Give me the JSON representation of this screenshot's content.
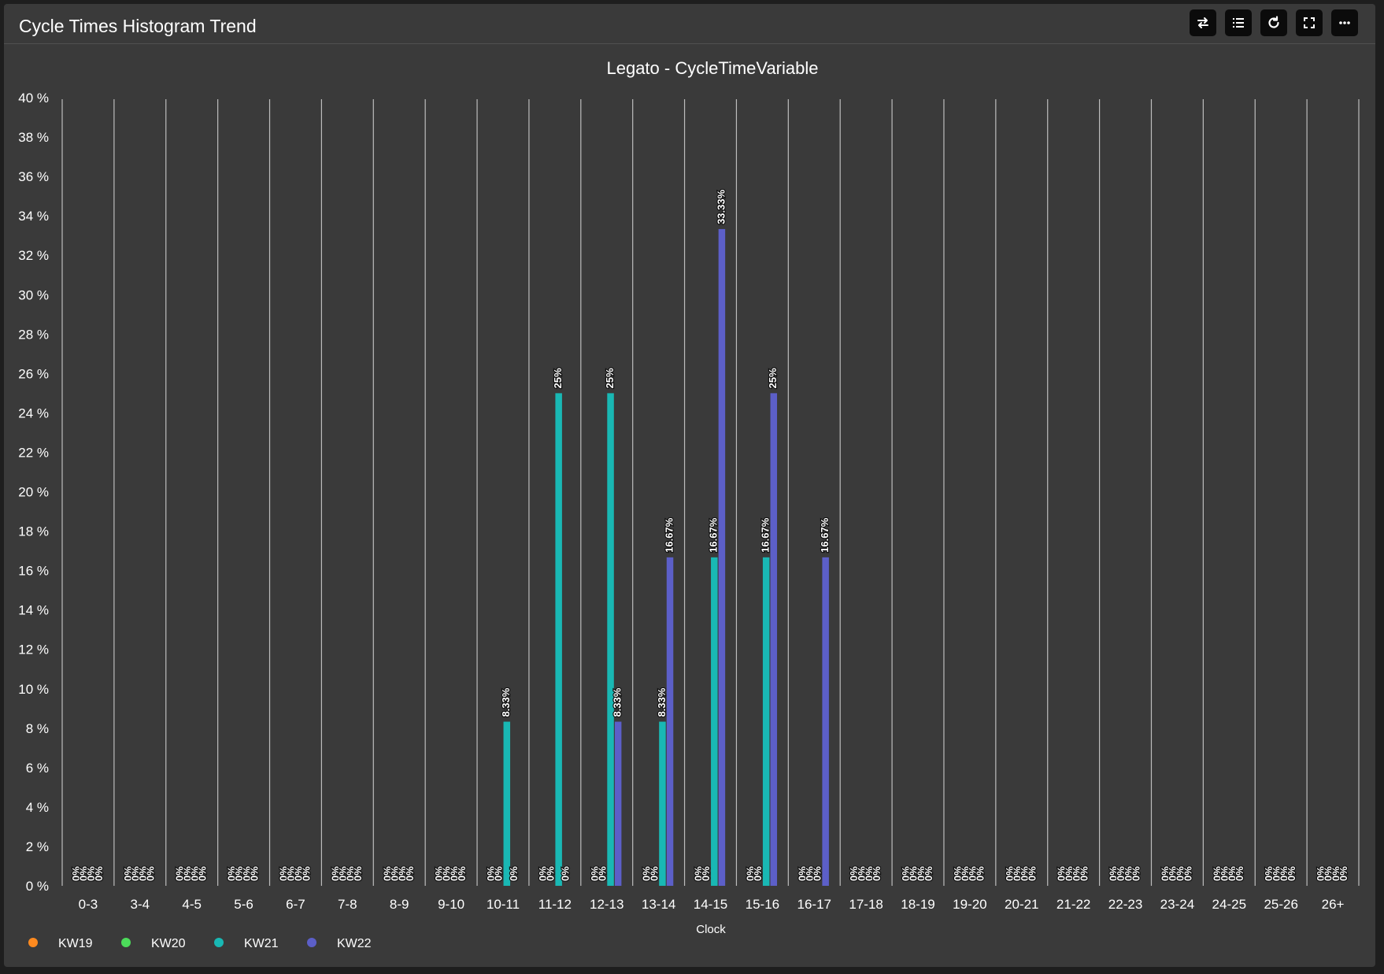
{
  "header": {
    "title": "Cycle Times Histogram Trend",
    "buttons": [
      {
        "name": "swap-button",
        "icon": "swap-arrows-icon"
      },
      {
        "name": "list-button",
        "icon": "list-icon"
      },
      {
        "name": "refresh-button",
        "icon": "refresh-icon"
      },
      {
        "name": "fullscreen-button",
        "icon": "fullscreen-icon"
      },
      {
        "name": "more-button",
        "icon": "more-dots-icon"
      }
    ]
  },
  "chart_data": {
    "type": "bar",
    "title": "Legato - CycleTimeVariable",
    "xlabel": "Clock",
    "ylabel": "",
    "ylim": [
      0,
      40
    ],
    "ytick_step": 2,
    "ytick_suffix": " %",
    "grid": "vertical",
    "legend_position": "bottom-left",
    "categories": [
      "0-3",
      "3-4",
      "4-5",
      "5-6",
      "6-7",
      "7-8",
      "8-9",
      "9-10",
      "10-11",
      "11-12",
      "12-13",
      "13-14",
      "14-15",
      "15-16",
      "16-17",
      "17-18",
      "18-19",
      "19-20",
      "20-21",
      "21-22",
      "22-23",
      "23-24",
      "24-25",
      "25-26",
      "26+"
    ],
    "series": [
      {
        "name": "KW19",
        "color": "#ff8a1f",
        "values": [
          0,
          0,
          0,
          0,
          0,
          0,
          0,
          0,
          0,
          0,
          0,
          0,
          0,
          0,
          0,
          0,
          0,
          0,
          0,
          0,
          0,
          0,
          0,
          0,
          0
        ]
      },
      {
        "name": "KW20",
        "color": "#4cdc5a",
        "values": [
          0,
          0,
          0,
          0,
          0,
          0,
          0,
          0,
          0,
          0,
          0,
          0,
          0,
          0,
          0,
          0,
          0,
          0,
          0,
          0,
          0,
          0,
          0,
          0,
          0
        ]
      },
      {
        "name": "KW21",
        "color": "#19b8b4",
        "values": [
          0,
          0,
          0,
          0,
          0,
          0,
          0,
          0,
          8.33,
          25,
          25,
          8.33,
          16.67,
          16.67,
          0,
          0,
          0,
          0,
          0,
          0,
          0,
          0,
          0,
          0,
          0
        ]
      },
      {
        "name": "KW22",
        "color": "#5c5fc8",
        "values": [
          0,
          0,
          0,
          0,
          0,
          0,
          0,
          0,
          0,
          0,
          8.33,
          16.67,
          33.33,
          25,
          16.67,
          0,
          0,
          0,
          0,
          0,
          0,
          0,
          0,
          0,
          0
        ]
      }
    ]
  }
}
